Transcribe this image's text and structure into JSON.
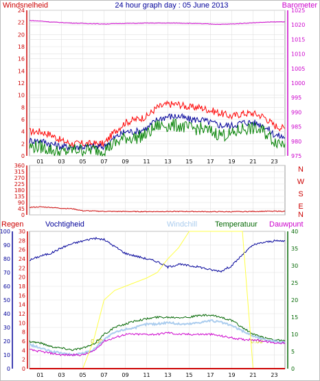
{
  "title": "24 hour graph day : 05 June 2013",
  "top_panel": {
    "left_axis_label": "Windsnelheid",
    "right_axis_label": "Barometer",
    "left_color": "#cc0000",
    "right_color": "#cc00cc"
  },
  "middle_panel": {
    "compass_labels": [
      "N",
      "W",
      "S",
      "E",
      "N"
    ],
    "compass_color": "#cc0000"
  },
  "bottom_panel": {
    "labels": {
      "regen": "Regen",
      "vochtigheid": "Vochtigheid",
      "windchill": "Windchill",
      "temperatuur": "Temperatuur",
      "dauwpunt": "Dauwpunt"
    },
    "colors": {
      "regen": "#cc0000",
      "vochtigheid": "#000099",
      "windchill": "#aaccee",
      "temperatuur": "#006600",
      "dauwpunt": "#cc00cc",
      "solar": "#ffff44"
    },
    "rain_values": [
      "0.00",
      "0.00"
    ]
  },
  "x_ticks": [
    "01",
    "03",
    "05",
    "07",
    "09",
    "11",
    "13",
    "15",
    "17",
    "19",
    "21",
    "23"
  ],
  "chart_data": [
    {
      "type": "line",
      "title": "24 hour graph day : 05 June 2013",
      "ylabel": "Windsnelheid",
      "y2label": "Barometer",
      "ylim": [
        0,
        24
      ],
      "y2lim": [
        975,
        1025
      ],
      "yticks": [
        0,
        2,
        4,
        6,
        8,
        10,
        12,
        14,
        16,
        18,
        20,
        22,
        24
      ],
      "y2ticks": [
        975,
        980,
        985,
        990,
        995,
        1000,
        1005,
        1010,
        1015,
        1020,
        1025
      ],
      "x": [
        0,
        1,
        2,
        3,
        4,
        5,
        6,
        7,
        8,
        9,
        10,
        11,
        12,
        13,
        14,
        15,
        16,
        17,
        18,
        19,
        20,
        21,
        22,
        23,
        24
      ],
      "series": [
        {
          "name": "Windsnelheid (gust)",
          "color": "#ff0000",
          "axis": "left",
          "values": [
            4,
            4,
            3.5,
            2.5,
            2,
            2,
            2,
            2,
            4,
            5.5,
            6,
            6.5,
            8,
            8.5,
            8.5,
            8,
            8,
            7.5,
            7,
            6.5,
            7,
            7,
            6.5,
            5,
            4.5
          ]
        },
        {
          "name": "Windsnelheid (average)",
          "color": "#000099",
          "axis": "left",
          "values": [
            2.5,
            2.5,
            2,
            1.5,
            1.5,
            1.5,
            1.5,
            1.5,
            3,
            4,
            4,
            4.5,
            6,
            6.5,
            6.5,
            6,
            6,
            5.5,
            5,
            5,
            5.5,
            5.5,
            5,
            3.5,
            3
          ]
        },
        {
          "name": "Windsnelheid (min)",
          "color": "#008000",
          "axis": "left",
          "values": [
            1.5,
            1.5,
            1,
            0.5,
            1,
            1,
            1,
            1,
            2,
            3,
            3,
            3.5,
            5,
            5,
            5,
            4.5,
            4.5,
            4,
            3.5,
            3.5,
            4.5,
            4.5,
            4,
            2.5,
            2
          ]
        },
        {
          "name": "Barometer",
          "color": "#cc00cc",
          "axis": "right",
          "values": [
            1021.5,
            1021.3,
            1021,
            1020.8,
            1020.6,
            1020.5,
            1020.4,
            1020.3,
            1020.4,
            1020.5,
            1020.5,
            1020.6,
            1020.6,
            1020.6,
            1020.6,
            1020.5,
            1020.4,
            1020.3,
            1020.2,
            1020.3,
            1020.5,
            1020.7,
            1020.9,
            1021,
            1021.1
          ]
        }
      ]
    },
    {
      "type": "line",
      "ylim": [
        0,
        360
      ],
      "yticks": [
        0,
        45,
        90,
        135,
        180,
        225,
        270,
        315,
        360
      ],
      "x": [
        0,
        1,
        2,
        3,
        4,
        5,
        6,
        7,
        8,
        9,
        10,
        11,
        12,
        13,
        14,
        15,
        16,
        17,
        18,
        19,
        20,
        21,
        22,
        23,
        24
      ],
      "series": [
        {
          "name": "Wind direction",
          "color": "#cc0000",
          "values": [
            55,
            58,
            55,
            48,
            45,
            30,
            28,
            26,
            25,
            25,
            24,
            24,
            24,
            25,
            25,
            25,
            24,
            23,
            23,
            23,
            24,
            25,
            26,
            27,
            27
          ]
        }
      ]
    },
    {
      "type": "line",
      "ylim": [
        0,
        100
      ],
      "yticks": [
        0,
        10,
        20,
        30,
        40,
        50,
        60,
        70,
        80,
        90,
        100
      ],
      "y_regen_lim": [
        0,
        30
      ],
      "y_regen_ticks": [
        0,
        2,
        4,
        6,
        8,
        10,
        12,
        14,
        16,
        18,
        20,
        22,
        24,
        26,
        28,
        30
      ],
      "y_temp_lim": [
        0,
        40
      ],
      "y_temp_ticks": [
        0,
        5,
        10,
        15,
        20,
        25,
        30,
        35,
        40
      ],
      "x": [
        0,
        1,
        2,
        3,
        4,
        5,
        6,
        7,
        8,
        9,
        10,
        11,
        12,
        13,
        14,
        15,
        16,
        17,
        18,
        19,
        20,
        21,
        22,
        23,
        24
      ],
      "series": [
        {
          "name": "Vochtigheid",
          "color": "#000099",
          "axis": "humidity",
          "values": [
            79,
            82,
            84,
            88,
            91,
            93,
            95,
            94,
            89,
            84,
            82,
            80,
            78,
            74,
            76,
            75,
            74,
            72,
            71,
            75,
            83,
            90,
            92,
            93,
            93
          ]
        },
        {
          "name": "Temperatuur",
          "color": "#006600",
          "axis": "temp",
          "values": [
            8,
            7.5,
            6.5,
            6,
            5.5,
            6,
            7,
            10,
            12,
            13,
            14,
            14.5,
            15,
            15,
            15,
            15,
            15.5,
            15.5,
            15,
            14,
            12,
            10,
            9,
            8.5,
            8
          ]
        },
        {
          "name": "Windchill",
          "color": "#aaccee",
          "axis": "temp",
          "values": [
            7,
            6,
            5,
            4.5,
            4,
            4.5,
            5.5,
            8.5,
            10.5,
            11.5,
            12,
            13,
            13,
            13.5,
            13,
            13,
            13.5,
            14,
            13.5,
            12.5,
            11,
            9.5,
            8.5,
            8,
            7.5
          ]
        },
        {
          "name": "Dauwpunt",
          "color": "#cc00cc",
          "axis": "temp",
          "values": [
            5.5,
            5,
            4.5,
            4,
            4,
            4,
            5,
            8,
            9,
            10,
            10,
            10,
            10,
            10.5,
            10,
            10,
            10,
            10,
            9.5,
            9,
            8.5,
            8.5,
            8,
            7.5,
            7.5
          ]
        },
        {
          "name": "Solar",
          "color": "#ffff44",
          "axis": "humidity",
          "values": [
            0,
            0,
            0,
            0,
            0,
            0,
            20,
            50,
            57,
            60,
            63,
            66,
            70,
            80,
            88,
            100,
            100,
            100,
            100,
            100,
            100,
            0,
            0,
            0,
            0
          ]
        },
        {
          "name": "Regen",
          "color": "#cc0000",
          "axis": "regen",
          "values": [
            0,
            0,
            0,
            0,
            0,
            0,
            0,
            0,
            0,
            0,
            0,
            0,
            0,
            0,
            0,
            0,
            0,
            0,
            0,
            0,
            0,
            0,
            0,
            0,
            0
          ]
        }
      ]
    }
  ]
}
